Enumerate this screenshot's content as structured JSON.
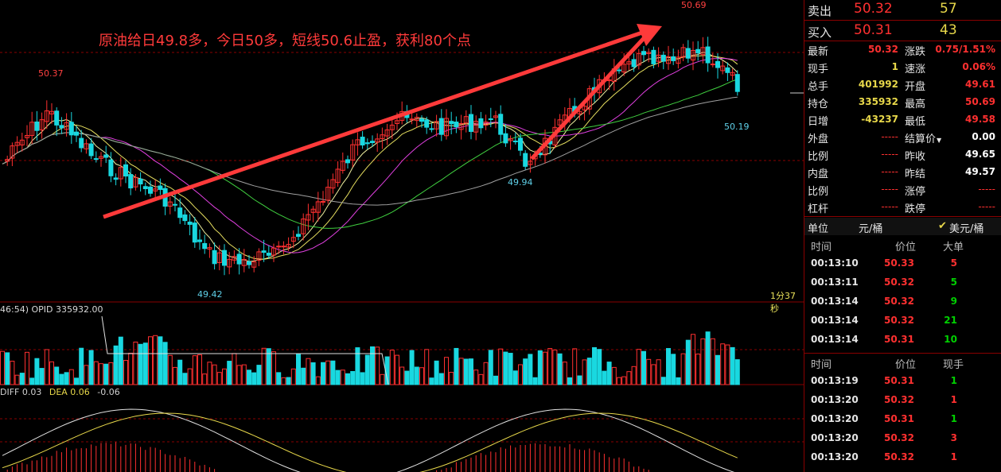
{
  "annotation": "原油给日49.8多，今日50多，短线50.6止盈，获利80个点",
  "price_labels": {
    "high": "50.69",
    "left_high": "50.37",
    "low": "49.42",
    "mid_low": "49.94",
    "last": "50.19"
  },
  "timer": "1分37秒",
  "volume_label": "46:54)  OPID 335932.00",
  "macd": {
    "diff": "DIFF 0.03",
    "dea": "DEA 0.06",
    "val": "-0.06"
  },
  "colors": {
    "up": "#ff3030",
    "down": "#19d8e0",
    "grid": "#8a0000"
  },
  "quote": {
    "ask_label": "卖出",
    "ask_price": "50.32",
    "ask_vol": "57",
    "bid_label": "买入",
    "bid_price": "50.31",
    "bid_vol": "43"
  },
  "stats_left": [
    {
      "k": "最新",
      "v": "50.32",
      "c": "red"
    },
    {
      "k": "现手",
      "v": "1",
      "c": "yel"
    },
    {
      "k": "总手",
      "v": "401992",
      "c": "yel"
    },
    {
      "k": "持仓",
      "v": "335932",
      "c": "yel"
    },
    {
      "k": "日增",
      "v": "-43237",
      "c": "yel"
    },
    {
      "k": "外盘",
      "v": "-----",
      "c": "dim"
    },
    {
      "k": "比例",
      "v": "-----",
      "c": "dim"
    },
    {
      "k": "内盘",
      "v": "-----",
      "c": "dim"
    },
    {
      "k": "比例",
      "v": "-----",
      "c": "dim"
    },
    {
      "k": "杠杆",
      "v": "-----",
      "c": "dim"
    }
  ],
  "stats_right": [
    {
      "k": "涨跌",
      "v": "0.75/1.51%",
      "c": "red"
    },
    {
      "k": "速涨",
      "v": "0.06%",
      "c": "red"
    },
    {
      "k": "开盘",
      "v": "49.61",
      "c": "red"
    },
    {
      "k": "最高",
      "v": "50.69",
      "c": "red"
    },
    {
      "k": "最低",
      "v": "49.58",
      "c": "red"
    },
    {
      "k": "结算价",
      "v": "0.00",
      "c": "wht"
    },
    {
      "k": "昨收",
      "v": "49.65",
      "c": "wht"
    },
    {
      "k": "昨结",
      "v": "49.57",
      "c": "wht"
    },
    {
      "k": "涨停",
      "v": "-----",
      "c": "dim"
    },
    {
      "k": "跌停",
      "v": "-----",
      "c": "dim"
    }
  ],
  "unit": {
    "label": "单位",
    "opt1": "元/桶",
    "opt2": "美元/桶"
  },
  "table1": {
    "headers": [
      "时间",
      "价位",
      "大单"
    ],
    "rows": [
      {
        "t": "00:13:10",
        "p": "50.33",
        "v": "5",
        "c": "red"
      },
      {
        "t": "00:13:11",
        "p": "50.32",
        "v": "5",
        "c": "grn"
      },
      {
        "t": "00:13:14",
        "p": "50.32",
        "v": "9",
        "c": "grn"
      },
      {
        "t": "00:13:14",
        "p": "50.32",
        "v": "21",
        "c": "grn"
      },
      {
        "t": "00:13:14",
        "p": "50.31",
        "v": "10",
        "c": "grn"
      }
    ]
  },
  "table2": {
    "headers": [
      "时间",
      "价位",
      "现手"
    ],
    "rows": [
      {
        "t": "00:13:19",
        "p": "50.31",
        "v": "1",
        "c": "grn"
      },
      {
        "t": "00:13:20",
        "p": "50.32",
        "v": "1",
        "c": "red"
      },
      {
        "t": "00:13:20",
        "p": "50.31",
        "v": "1",
        "c": "grn"
      },
      {
        "t": "00:13:20",
        "p": "50.32",
        "v": "3",
        "c": "red"
      },
      {
        "t": "00:13:20",
        "p": "50.32",
        "v": "1",
        "c": "red"
      }
    ]
  }
}
